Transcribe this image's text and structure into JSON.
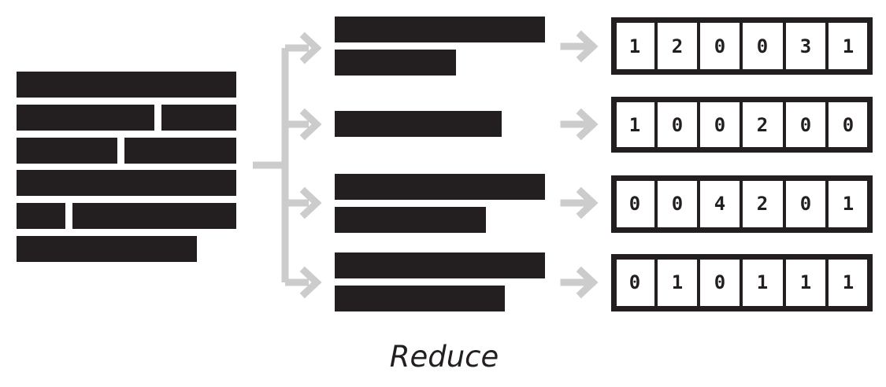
{
  "diagram": {
    "caption": "Reduce",
    "colors": {
      "ink": "#231f20",
      "arrow": "#cccccc",
      "background": "#ffffff"
    },
    "input_block": {
      "description_name": "source-text-block"
    },
    "vectors": [
      {
        "values": [
          "1",
          "2",
          "0",
          "0",
          "3",
          "1"
        ]
      },
      {
        "values": [
          "1",
          "0",
          "0",
          "2",
          "0",
          "0"
        ]
      },
      {
        "values": [
          "0",
          "0",
          "4",
          "2",
          "0",
          "1"
        ]
      },
      {
        "values": [
          "0",
          "1",
          "0",
          "1",
          "1",
          "1"
        ]
      }
    ]
  }
}
